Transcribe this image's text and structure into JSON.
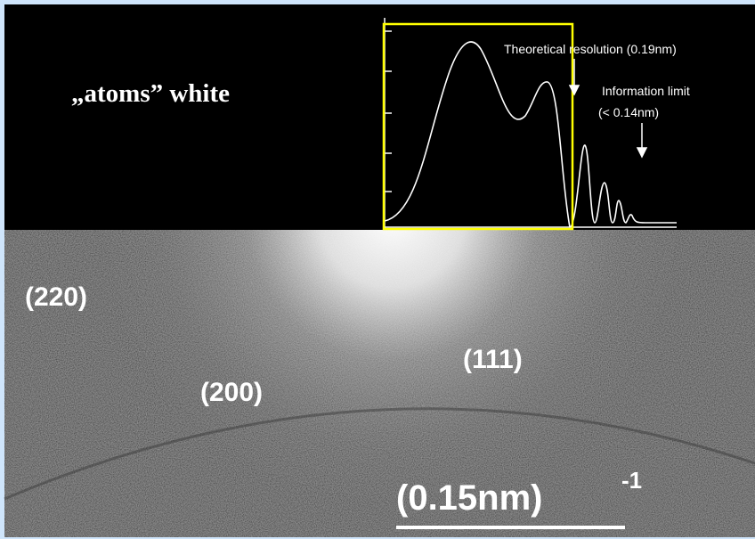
{
  "caption": "„atoms” white",
  "profile": {
    "theoretical_resolution": "Theoretical resolution (0.19nm)",
    "information_limit": "Information limit",
    "information_limit_value": "(< 0.14nm)"
  },
  "diffraction": {
    "reflections": [
      "(220)",
      "(200)",
      "(111)"
    ],
    "scale_bar": "(0.15nm)",
    "scale_exponent": "-1"
  }
}
